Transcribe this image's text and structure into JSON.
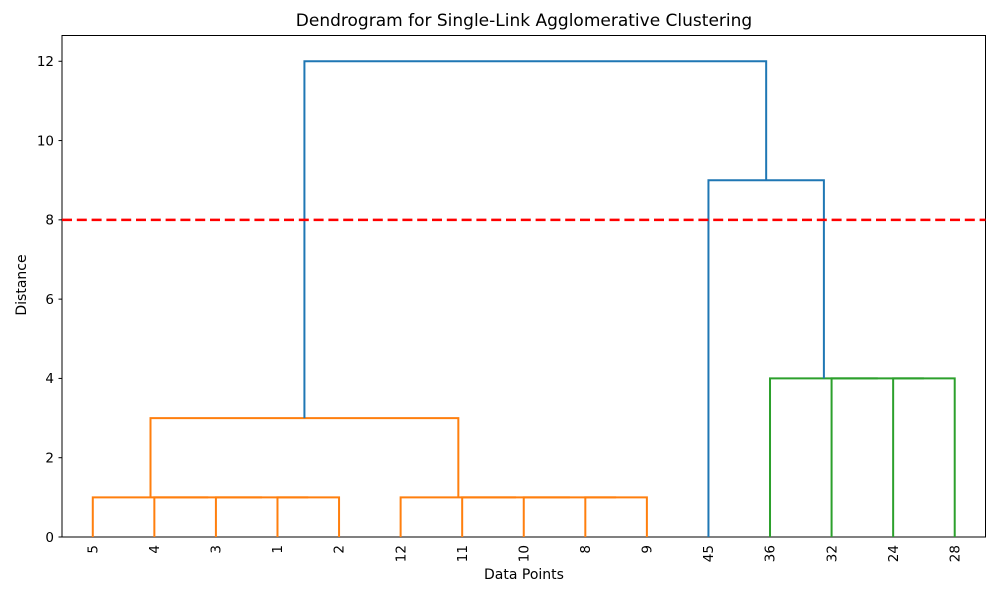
{
  "chart_data": {
    "type": "dendrogram",
    "title": "Dendrogram for Single-Link Agglomerative Clustering",
    "xlabel": "Data Points",
    "ylabel": "Distance",
    "leaf_labels": [
      "5",
      "4",
      "3",
      "1",
      "2",
      "12",
      "11",
      "10",
      "8",
      "9",
      "45",
      "36",
      "32",
      "24",
      "28"
    ],
    "leaf_positions": [
      5,
      15,
      25,
      35,
      45,
      55,
      65,
      75,
      85,
      95,
      105,
      115,
      125,
      135,
      145
    ],
    "xlim": [
      0,
      150
    ],
    "ylim": [
      0,
      12.65
    ],
    "yticks": [
      0,
      2,
      4,
      6,
      8,
      10,
      12
    ],
    "grid": false,
    "legend": "none",
    "colors": {
      "cluster_orange": "#ff7f0e",
      "cluster_green": "#2ca02c",
      "above_threshold_blue": "#1f77b4",
      "threshold_red": "#ff0000",
      "axis_black": "#000000"
    },
    "threshold_line": {
      "y": 8,
      "style": "dashed",
      "color": "#ff0000"
    },
    "links": [
      {
        "x1": 35,
        "y1": 0,
        "x2": 45,
        "y2": 0,
        "height": 1,
        "color": "#ff7f0e"
      },
      {
        "x1": 25,
        "y1": 0,
        "x2": 40,
        "y2": 1,
        "height": 1,
        "color": "#ff7f0e"
      },
      {
        "x1": 15,
        "y1": 0,
        "x2": 32.5,
        "y2": 1,
        "height": 1,
        "color": "#ff7f0e"
      },
      {
        "x1": 5,
        "y1": 0,
        "x2": 23.75,
        "y2": 1,
        "height": 1,
        "color": "#ff7f0e"
      },
      {
        "x1": 85,
        "y1": 0,
        "x2": 95,
        "y2": 0,
        "height": 1,
        "color": "#ff7f0e"
      },
      {
        "x1": 75,
        "y1": 0,
        "x2": 90,
        "y2": 1,
        "height": 1,
        "color": "#ff7f0e"
      },
      {
        "x1": 65,
        "y1": 0,
        "x2": 82.5,
        "y2": 1,
        "height": 1,
        "color": "#ff7f0e"
      },
      {
        "x1": 55,
        "y1": 0,
        "x2": 73.75,
        "y2": 1,
        "height": 1,
        "color": "#ff7f0e"
      },
      {
        "x1": 14.375,
        "y1": 1,
        "x2": 64.375,
        "y2": 1,
        "height": 3,
        "color": "#ff7f0e"
      },
      {
        "x1": 135,
        "y1": 0,
        "x2": 145,
        "y2": 0,
        "height": 4,
        "color": "#2ca02c"
      },
      {
        "x1": 125,
        "y1": 0,
        "x2": 140,
        "y2": 4,
        "height": 4,
        "color": "#2ca02c"
      },
      {
        "x1": 115,
        "y1": 0,
        "x2": 132.5,
        "y2": 4,
        "height": 4,
        "color": "#2ca02c"
      },
      {
        "x1": 105,
        "y1": 0,
        "x2": 123.75,
        "y2": 4,
        "height": 9,
        "color": "#1f77b4"
      },
      {
        "x1": 39.375,
        "y1": 3,
        "x2": 114.375,
        "y2": 9,
        "height": 12,
        "color": "#1f77b4"
      }
    ]
  }
}
